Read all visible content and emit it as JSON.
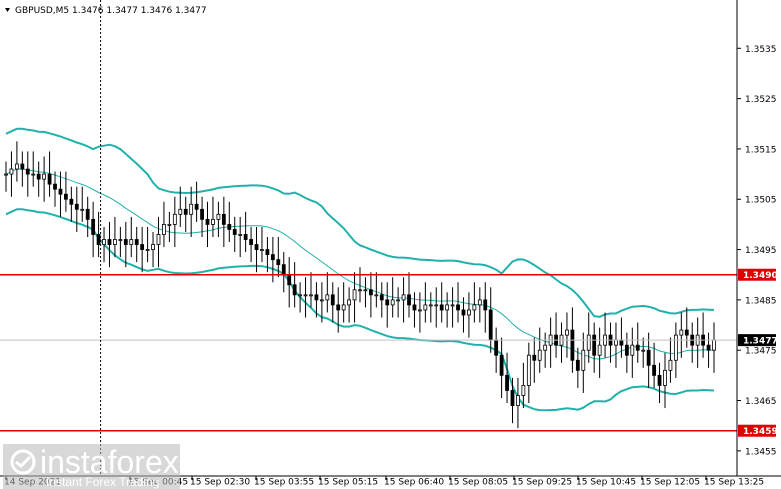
{
  "header": {
    "title": "GBPUSD,M5  1.3476 1.3477 1.3476 1.3477",
    "dropdown_icon": "triangle-down-icon"
  },
  "watermark": {
    "brand": "instaforex",
    "tagline": "Instant Forex Trading",
    "icon": "instaforex-logo-icon"
  },
  "colors": {
    "background": "#ffffff",
    "bands": "#20b2aa",
    "ma": "#20b2aa",
    "level_line": "#e00000",
    "candle_bull": "#ffffff",
    "candle_bear": "#000000",
    "current_tag_bg": "#000000",
    "current_tag_fg": "#ffffff"
  },
  "chart_data": {
    "type": "candlestick",
    "symbol": "GBPUSD",
    "timeframe": "M5",
    "ohlc_header": {
      "open": 1.3476,
      "high": 1.3477,
      "low": 1.3476,
      "close": 1.3477
    },
    "ylim": [
      1.345,
      1.3544
    ],
    "y_ticks": [
      "1.3535",
      "1.3525",
      "1.3515",
      "1.3505",
      "1.3495",
      "1.3485",
      "1.3475",
      "1.3465",
      "1.3455"
    ],
    "x_ticks": [
      "14 Sep 2021",
      "15 Sep 00:45",
      "15 Sep 02:30",
      "15 Sep 03:55",
      "15 Sep 05:15",
      "15 Sep 06:40",
      "15 Sep 08:05",
      "15 Sep 09:25",
      "15 Sep 10:45",
      "15 Sep 12:05",
      "15 Sep 13:25"
    ],
    "horizontal_levels": [
      {
        "value": 1.349,
        "label": "1.3490"
      },
      {
        "value": 1.3459,
        "label": "1.3459"
      }
    ],
    "current_price": {
      "value": 1.3477,
      "label": "1.3477"
    },
    "grid": false,
    "vertical_marker_x": 17,
    "close_series": [
      1.351,
      1.3511,
      1.3512,
      1.3511,
      1.351,
      1.351,
      1.3509,
      1.351,
      1.3508,
      1.3507,
      1.3506,
      1.3505,
      1.3504,
      1.3503,
      1.3503,
      1.3501,
      1.3498,
      1.3496,
      1.3497,
      1.3496,
      1.3497,
      1.3497,
      1.3496,
      1.3497,
      1.3496,
      1.3495,
      1.3495,
      1.3496,
      1.3498,
      1.35,
      1.35,
      1.3502,
      1.3503,
      1.3502,
      1.3504,
      1.3503,
      1.3501,
      1.35,
      1.3501,
      1.3502,
      1.35,
      1.3499,
      1.3498,
      1.3498,
      1.3497,
      1.3496,
      1.3495,
      1.3495,
      1.3494,
      1.3493,
      1.3492,
      1.349,
      1.3488,
      1.3486,
      1.3486,
      1.3486,
      1.3486,
      1.3485,
      1.3485,
      1.3486,
      1.3484,
      1.3483,
      1.3484,
      1.3485,
      1.3487,
      1.3487,
      1.3487,
      1.3486,
      1.3486,
      1.3485,
      1.3484,
      1.3485,
      1.3485,
      1.3486,
      1.3484,
      1.3483,
      1.3483,
      1.3484,
      1.3484,
      1.3484,
      1.3483,
      1.3484,
      1.3484,
      1.3483,
      1.3482,
      1.3483,
      1.3484,
      1.3485,
      1.3483,
      1.3477,
      1.3474,
      1.347,
      1.3467,
      1.3464,
      1.3466,
      1.3468,
      1.3474,
      1.3473,
      1.3475,
      1.3476,
      1.3478,
      1.3476,
      1.3478,
      1.3479,
      1.3473,
      1.3471,
      1.3475,
      1.3478,
      1.3474,
      1.3476,
      1.3478,
      1.3476,
      1.3477,
      1.3476,
      1.3474,
      1.3476,
      1.3475,
      1.3475,
      1.3472,
      1.347,
      1.3468,
      1.3471,
      1.3473,
      1.3478,
      1.3479,
      1.3478,
      1.3476,
      1.3478,
      1.3476,
      1.3475,
      1.3477
    ]
  }
}
